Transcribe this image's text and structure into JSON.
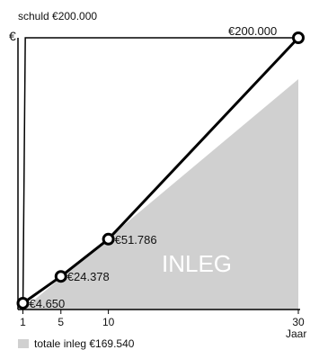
{
  "colors": {
    "line": "#000000",
    "area": "#d0d0d0",
    "inside_label": "#ffffff",
    "text": "#111111"
  },
  "labels": {
    "top_left": "schuld €200.000",
    "y_axis": "€",
    "x_axis": "Jaar",
    "area_label": "INLEG",
    "legend": "totale inleg €169.540"
  },
  "chart_data": {
    "type": "line",
    "xlabel": "Jaar",
    "ylabel": "€",
    "x_ticks": [
      1,
      5,
      10,
      30
    ],
    "xlim": [
      0,
      30
    ],
    "ylim": [
      0,
      200000
    ],
    "series": [
      {
        "values": [
          {
            "x": 1,
            "y": 4650,
            "label": "€4.650"
          },
          {
            "x": 5,
            "y": 24378,
            "label": "€24.378"
          },
          {
            "x": 10,
            "y": 51786,
            "label": "€51.786"
          },
          {
            "x": 30,
            "y": 200000,
            "label": "€200.000"
          }
        ]
      }
    ],
    "debt_line": {
      "x": [
        1,
        30
      ],
      "y": [
        200000,
        200000
      ],
      "label": "schuld €200.000"
    },
    "area": {
      "name": "totale inleg €169.540",
      "x": [
        1,
        30
      ],
      "y": [
        0,
        169540
      ]
    }
  }
}
